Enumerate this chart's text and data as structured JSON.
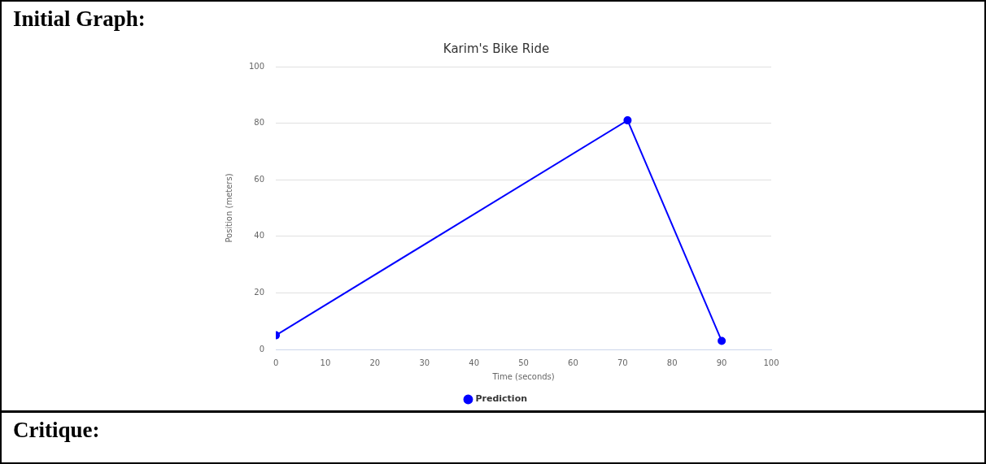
{
  "chart_data": {
    "type": "line",
    "title": "Karim's Bike Ride",
    "xlabel": "Time (seconds)",
    "ylabel": "Position (meters)",
    "annotations": [
      "Initial Graph:",
      "Critique:"
    ],
    "series": [
      {
        "name": "Prediction",
        "color": "#0000ff",
        "x": [
          0,
          71,
          90
        ],
        "values": [
          5,
          81,
          3
        ]
      }
    ],
    "xlim": [
      0,
      100
    ],
    "xticks": [
      0,
      10,
      20,
      30,
      40,
      50,
      60,
      70,
      80,
      90,
      100
    ],
    "ylim": [
      0,
      100
    ],
    "yticks": [
      0,
      20,
      40,
      60,
      80,
      100
    ],
    "grid": "y",
    "legend": "bottom",
    "marker": "circle",
    "line_style": "solid"
  }
}
